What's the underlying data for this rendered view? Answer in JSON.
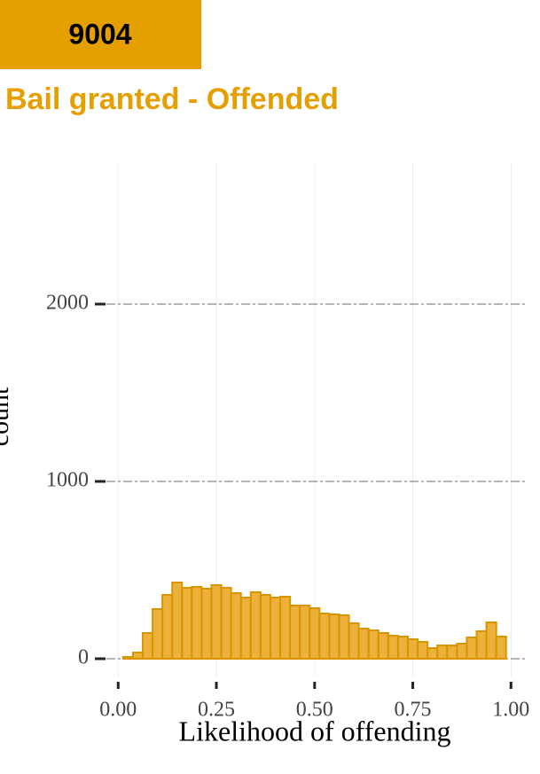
{
  "badge": "9004",
  "chart_data": {
    "type": "histogram",
    "title": "Bail granted - Offended",
    "x_label": "Likelihood of offending",
    "y_label": "count",
    "color": "#e8a317",
    "edge_color": "#d99400",
    "bins": [
      0.0125,
      0.0375,
      0.0625,
      0.0875,
      0.1125,
      0.1375,
      0.1625,
      0.1875,
      0.2125,
      0.2375,
      0.2625,
      0.2875,
      0.3125,
      0.3375,
      0.3625,
      0.3875,
      0.4125,
      0.4375,
      0.4625,
      0.4875,
      0.5125,
      0.5375,
      0.5625,
      0.5875,
      0.6125,
      0.6375,
      0.6625,
      0.6875,
      0.7125,
      0.7375,
      0.7625,
      0.7875,
      0.8125,
      0.8375,
      0.8625,
      0.8875,
      0.9125,
      0.9375,
      0.9625,
      0.9875
    ],
    "values": [
      10,
      35,
      145,
      280,
      360,
      430,
      400,
      405,
      395,
      415,
      400,
      370,
      345,
      375,
      360,
      345,
      350,
      300,
      300,
      285,
      255,
      250,
      245,
      200,
      170,
      160,
      145,
      130,
      125,
      110,
      95,
      60,
      75,
      75,
      85,
      120,
      155,
      205,
      125
    ],
    "xlim": [
      -0.03,
      1.04
    ],
    "ylim": [
      -100,
      2800
    ],
    "xticks": [
      {
        "value": 0,
        "label": "0.00"
      },
      {
        "value": 0.25,
        "label": "0.25"
      },
      {
        "value": 0.5,
        "label": "0.50"
      },
      {
        "value": 0.75,
        "label": "0.75"
      },
      {
        "value": 1,
        "label": "1.00"
      }
    ],
    "yticks": [
      0,
      1000,
      2000
    ],
    "grid": true
  }
}
